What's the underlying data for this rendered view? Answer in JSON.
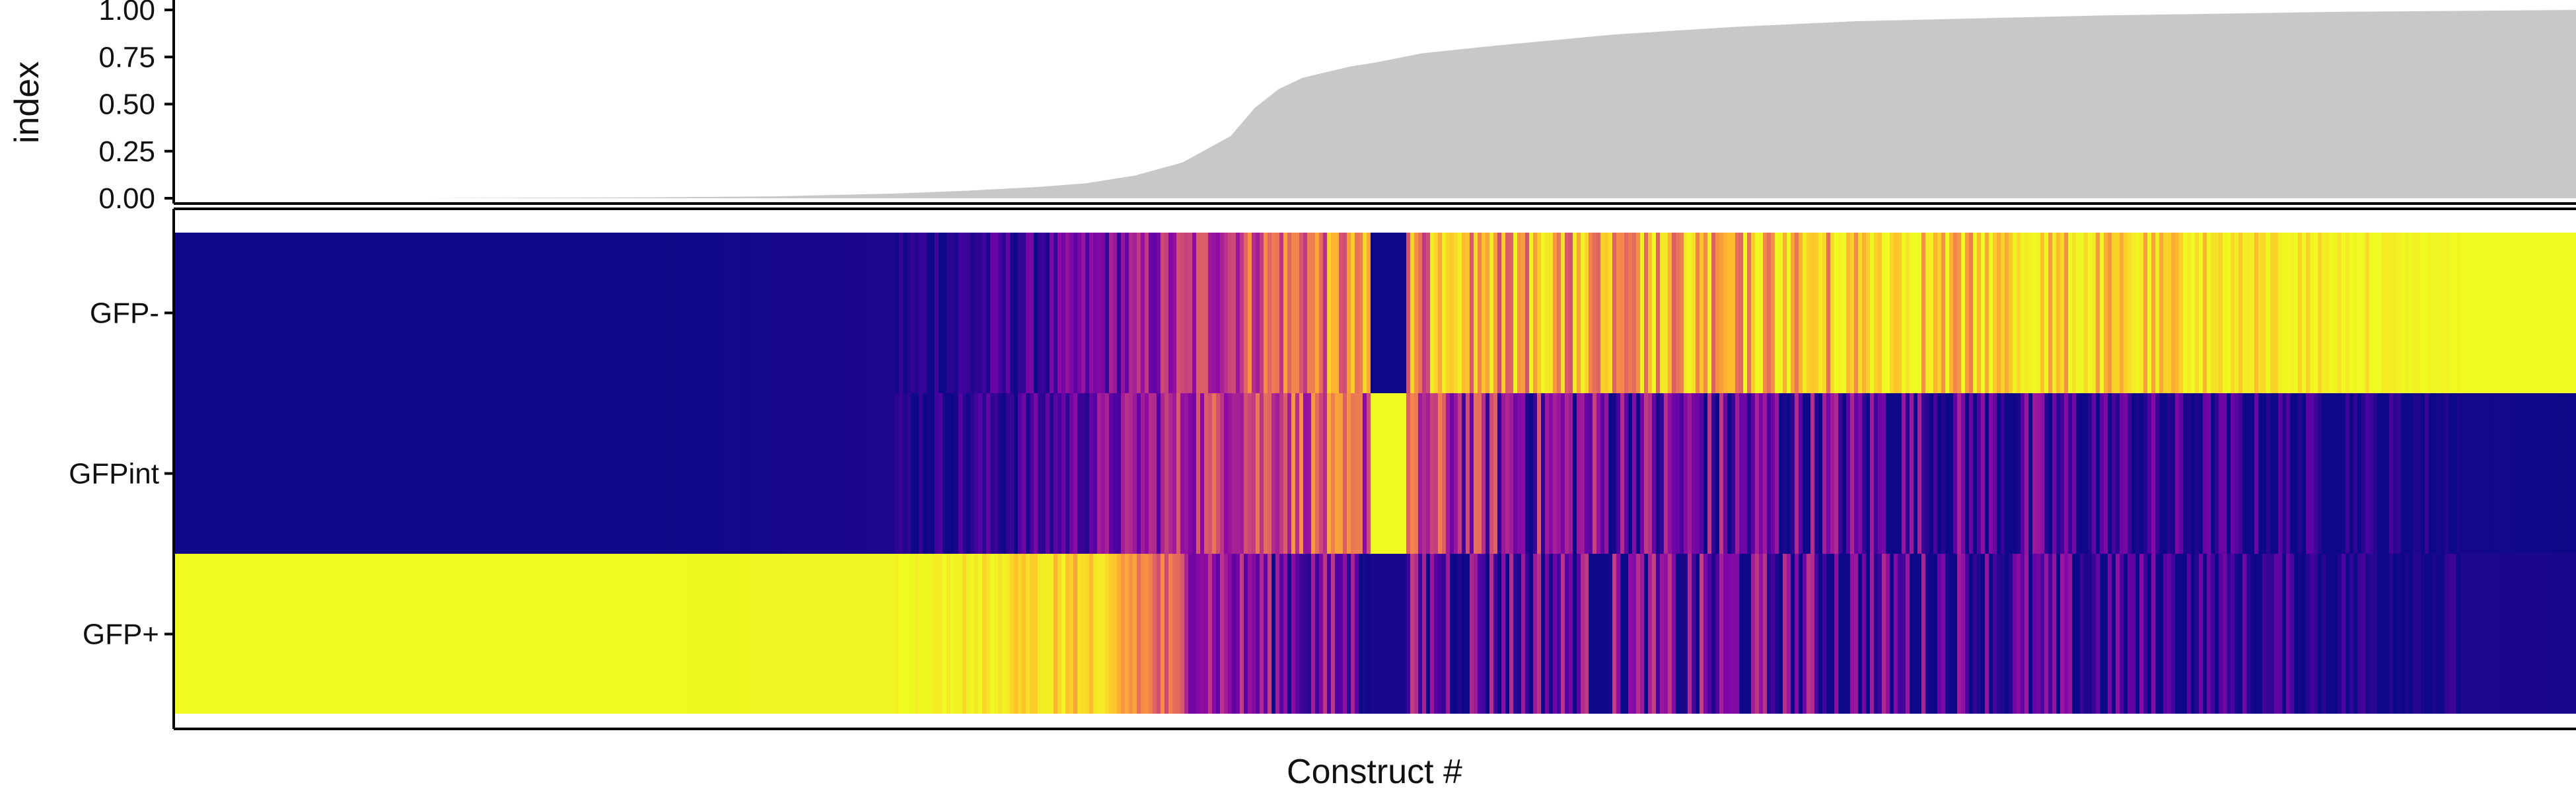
{
  "chart_data": [
    {
      "type": "area",
      "ylabel": "index",
      "xlabel": "",
      "ylim": [
        0,
        1
      ],
      "xlim": [
        0,
        1
      ],
      "y_ticks": [
        "0.00",
        "0.25",
        "0.50",
        "0.75",
        "1.00"
      ],
      "grid": false,
      "fill_color": "#c8c8c8",
      "series": [
        {
          "x": [
            0,
            0.1,
            0.2,
            0.25,
            0.3,
            0.33,
            0.36,
            0.38,
            0.4,
            0.42,
            0.44,
            0.45,
            0.46,
            0.47,
            0.48,
            0.49,
            0.5,
            0.52,
            0.55,
            0.6,
            0.65,
            0.7,
            0.8,
            0.9,
            1.0
          ],
          "y": [
            0.0,
            0.0,
            0.005,
            0.01,
            0.025,
            0.04,
            0.06,
            0.08,
            0.12,
            0.19,
            0.33,
            0.48,
            0.58,
            0.64,
            0.67,
            0.7,
            0.72,
            0.77,
            0.81,
            0.87,
            0.91,
            0.94,
            0.97,
            0.99,
            1.0
          ]
        }
      ]
    },
    {
      "type": "heatmap",
      "xlabel": "Construct #",
      "ylabel": "",
      "rows": [
        "GFP-",
        "GFPint",
        "GFP+"
      ],
      "colormap": "plasma",
      "color_range": [
        0,
        1
      ],
      "grid": false,
      "row_profiles": {
        "GFP-": {
          "x": [
            0,
            0.2,
            0.3,
            0.36,
            0.4,
            0.44,
            0.46,
            0.5,
            0.55,
            0.6,
            0.7,
            0.8,
            0.85,
            0.9,
            0.93,
            0.95,
            1.0
          ],
          "v": [
            0.0,
            0.0,
            0.03,
            0.1,
            0.25,
            0.45,
            0.55,
            0.62,
            0.7,
            0.76,
            0.82,
            0.86,
            0.88,
            0.92,
            0.98,
            1.0,
            1.0
          ]
        },
        "GFPint": {
          "x": [
            0,
            0.2,
            0.3,
            0.36,
            0.4,
            0.44,
            0.46,
            0.5,
            0.53,
            0.56,
            0.6,
            0.7,
            0.8,
            0.9,
            1.0
          ],
          "v": [
            0.0,
            0.0,
            0.03,
            0.1,
            0.25,
            0.45,
            0.5,
            0.45,
            0.35,
            0.25,
            0.18,
            0.12,
            0.07,
            0.03,
            0.0
          ]
        },
        "GFP+": {
          "x": [
            0,
            0.2,
            0.3,
            0.34,
            0.38,
            0.4,
            0.42,
            0.44,
            0.46,
            0.5,
            0.6,
            0.7,
            0.8,
            0.9,
            1.0
          ],
          "v": [
            1.0,
            1.0,
            0.97,
            0.9,
            0.8,
            0.65,
            0.4,
            0.25,
            0.2,
            0.18,
            0.15,
            0.12,
            0.08,
            0.04,
            0.02
          ]
        }
      },
      "feature": {
        "x_range": [
          0.497,
          0.512
        ],
        "values": {
          "GFP-": 0.0,
          "GFPint": 1.0,
          "GFP+": 0.02
        }
      }
    }
  ]
}
